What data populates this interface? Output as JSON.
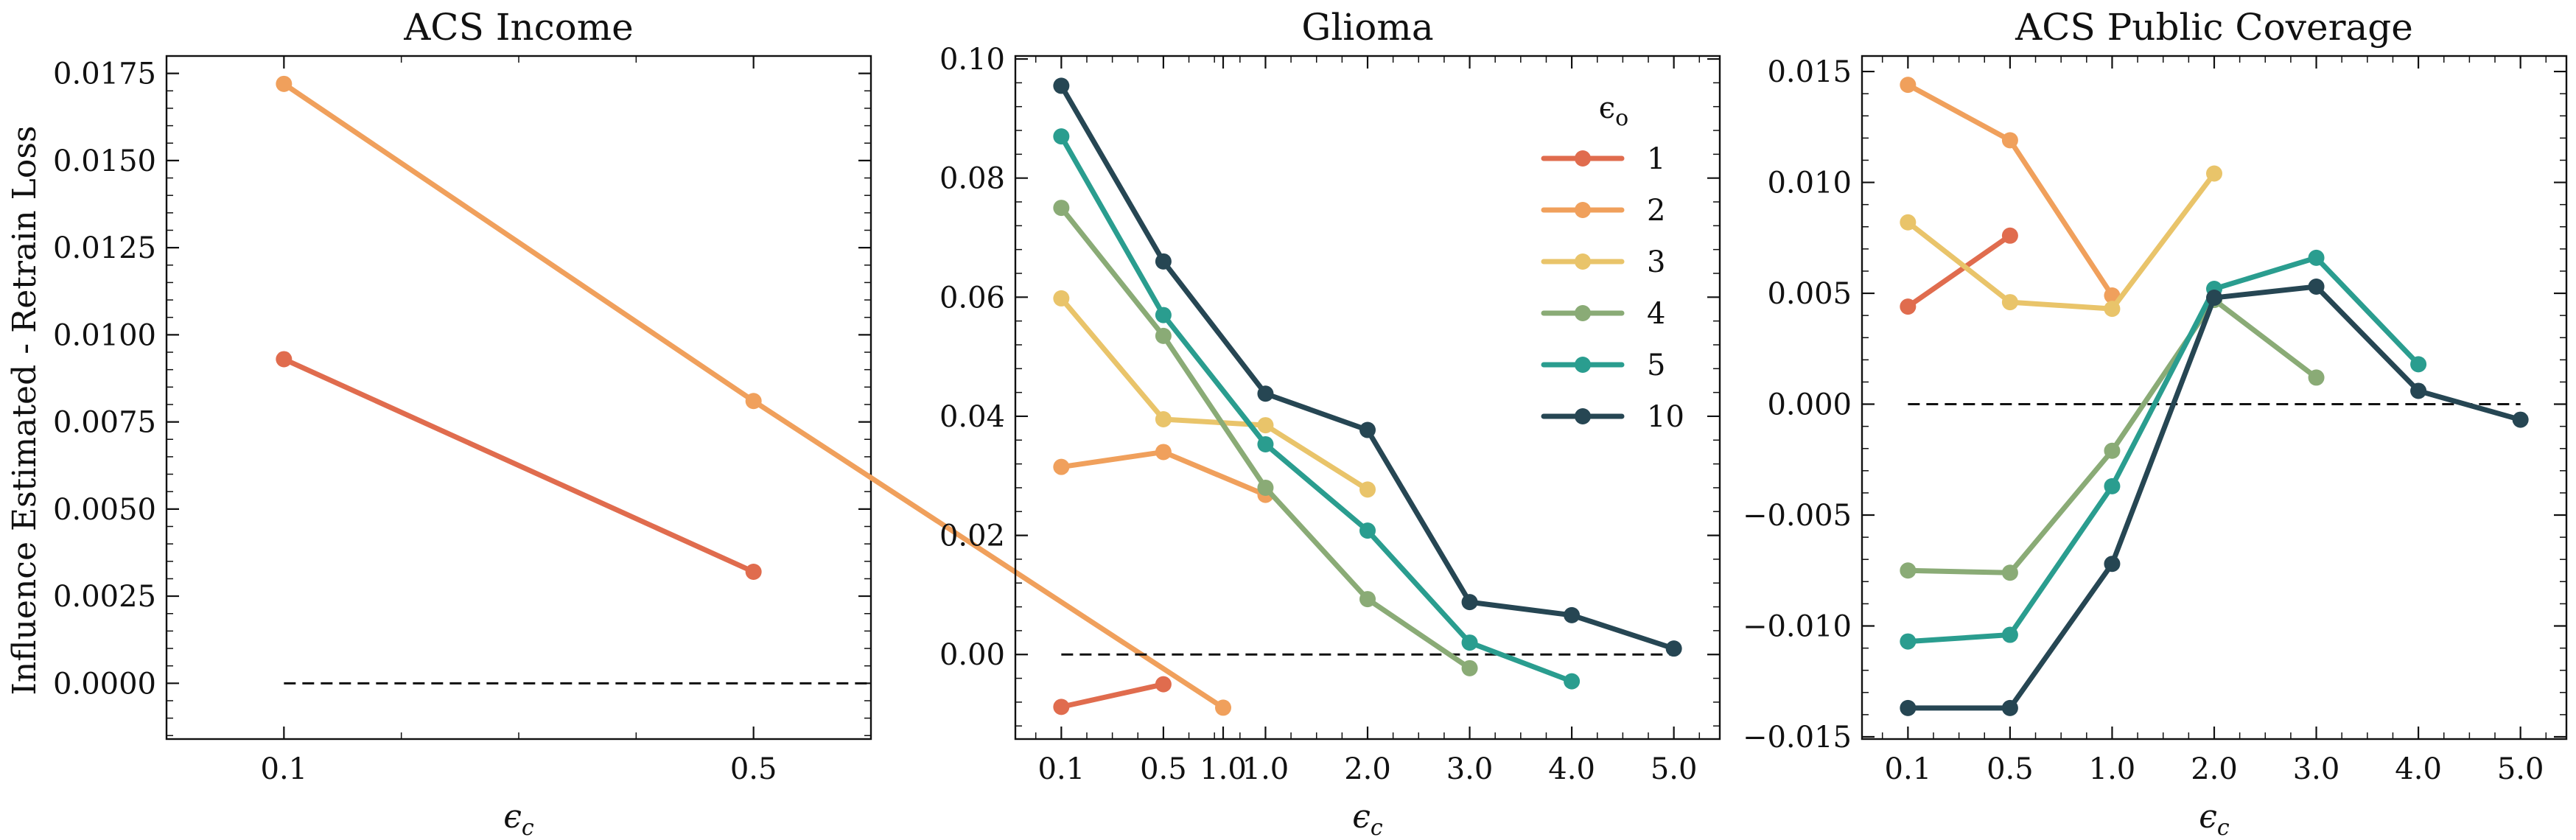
{
  "figure": {
    "ylabel": "Influence Estimated - Retrain Loss",
    "legend_title_base": "ϵ",
    "legend_title_sub": "o",
    "xlabel_base": "ϵ",
    "xlabel_sub": "c",
    "reference_line": 0
  },
  "chart_data": [
    {
      "type": "line",
      "title": "ACS Income",
      "categories": [
        "0.1",
        "0.5",
        "1.0"
      ],
      "xlim": [
        -0.25,
        1.25
      ],
      "ylim": [
        -0.0016,
        0.018
      ],
      "yticks": [
        0.0,
        0.0025,
        0.005,
        0.0075,
        0.01,
        0.0125,
        0.015,
        0.0175
      ],
      "ytick_labels": [
        "0.0000",
        "0.0025",
        "0.0050",
        "0.0075",
        "0.0100",
        "0.0125",
        "0.0150",
        "0.0175"
      ],
      "yminor_step": 0.0005,
      "reference_line": {
        "y": 0,
        "x_from": 0,
        "x_to": 1.25
      },
      "legend": false,
      "series": [
        {
          "name": "1",
          "color": "#e06c4e",
          "values": [
            0.0093,
            0.0032,
            null
          ]
        },
        {
          "name": "2",
          "color": "#f0a05c",
          "values": [
            0.0172,
            0.0081,
            -0.0007
          ]
        }
      ]
    },
    {
      "type": "line",
      "title": "Glioma",
      "categories": [
        "0.1",
        "0.5",
        "1.0",
        "2.0",
        "3.0",
        "4.0",
        "5.0"
      ],
      "xlim": [
        -0.45,
        6.45
      ],
      "ylim": [
        -0.0142,
        0.1005
      ],
      "yticks": [
        0.0,
        0.02,
        0.04,
        0.06,
        0.08,
        0.1
      ],
      "ytick_labels": [
        "0.00",
        "0.02",
        "0.04",
        "0.06",
        "0.08",
        "0.10"
      ],
      "yminor_step": 0.004,
      "reference_line": {
        "y": 0,
        "x_from": 0,
        "x_to": 6
      },
      "legend": "upper right",
      "series": [
        {
          "name": "1",
          "color": "#e06c4e",
          "values": [
            -0.0088,
            -0.005,
            null,
            null,
            null,
            null,
            null
          ]
        },
        {
          "name": "2",
          "color": "#f0a05c",
          "values": [
            0.0315,
            0.034,
            0.0268,
            null,
            null,
            null,
            null
          ]
        },
        {
          "name": "3",
          "color": "#e9c46a",
          "values": [
            0.0598,
            0.0395,
            0.0385,
            0.0277,
            null,
            null,
            null
          ]
        },
        {
          "name": "4",
          "color": "#8aab76",
          "values": [
            0.075,
            0.0535,
            0.028,
            0.0093,
            -0.0023,
            null,
            null
          ]
        },
        {
          "name": "5",
          "color": "#2a9d8f",
          "values": [
            0.087,
            0.057,
            0.0353,
            0.0208,
            0.002,
            -0.0045,
            null
          ]
        },
        {
          "name": "10",
          "color": "#264653",
          "values": [
            0.0955,
            0.066,
            0.0438,
            0.0377,
            0.0088,
            0.0066,
            0.001
          ]
        }
      ]
    },
    {
      "type": "line",
      "title": "ACS Public Coverage",
      "categories": [
        "0.1",
        "0.5",
        "1.0",
        "2.0",
        "3.0",
        "4.0",
        "5.0"
      ],
      "xlim": [
        -0.45,
        6.45
      ],
      "ylim": [
        -0.0151,
        0.0157
      ],
      "yticks": [
        -0.015,
        -0.01,
        -0.005,
        0.0,
        0.005,
        0.01,
        0.015
      ],
      "ytick_labels": [
        "−0.015",
        "−0.010",
        "−0.005",
        "0.000",
        "0.005",
        "0.010",
        "0.015"
      ],
      "yminor_step": 0.001,
      "reference_line": {
        "y": 0,
        "x_from": 0,
        "x_to": 6
      },
      "legend": false,
      "series": [
        {
          "name": "1",
          "color": "#e06c4e",
          "values": [
            0.0044,
            0.0076,
            null,
            null,
            null,
            null,
            null
          ]
        },
        {
          "name": "2",
          "color": "#f0a05c",
          "values": [
            0.0144,
            0.0119,
            0.0049,
            null,
            null,
            null,
            null
          ]
        },
        {
          "name": "3",
          "color": "#e9c46a",
          "values": [
            0.0082,
            0.0046,
            0.0043,
            0.0104,
            null,
            null,
            null
          ]
        },
        {
          "name": "4",
          "color": "#8aab76",
          "values": [
            -0.0075,
            -0.0076,
            -0.0021,
            0.0047,
            0.0012,
            null,
            null
          ]
        },
        {
          "name": "5",
          "color": "#2a9d8f",
          "values": [
            -0.0107,
            -0.0104,
            -0.0037,
            0.0052,
            0.0066,
            0.0018,
            null
          ]
        },
        {
          "name": "10",
          "color": "#264653",
          "values": [
            -0.0137,
            -0.0137,
            -0.0072,
            0.0048,
            0.0053,
            0.0006,
            -0.0007
          ]
        }
      ]
    }
  ]
}
